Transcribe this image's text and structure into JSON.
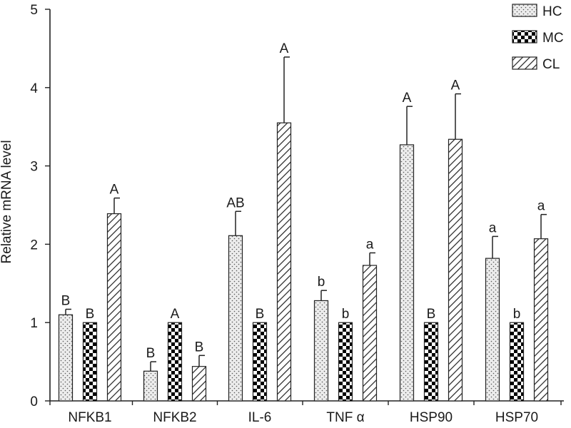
{
  "chart_data": {
    "type": "bar",
    "ylabel": "Relative mRNA level",
    "xlabel": "",
    "ylim": [
      0,
      5
    ],
    "yticks": [
      "0",
      "1",
      "2",
      "3",
      "4",
      "5"
    ],
    "categories": [
      "NFKB1",
      "NFKB2",
      "IL-6",
      "TNF α",
      "HSP90",
      "HSP70"
    ],
    "legend_position": "top-right",
    "series": [
      {
        "name": "HC",
        "pattern": "dots",
        "values": [
          1.1,
          0.38,
          2.11,
          1.28,
          3.27,
          1.82
        ],
        "errors": [
          0.07,
          0.12,
          0.31,
          0.13,
          0.49,
          0.28
        ],
        "significance": [
          "B",
          "B",
          "AB",
          "b",
          "A",
          "a"
        ]
      },
      {
        "name": "MC",
        "pattern": "checker",
        "values": [
          1.0,
          1.0,
          1.0,
          1.0,
          1.0,
          1.0
        ],
        "errors": [
          0,
          0,
          0,
          0,
          0,
          0
        ],
        "significance": [
          "B",
          "A",
          "B",
          "b",
          "B",
          "b"
        ]
      },
      {
        "name": "CL",
        "pattern": "diagonal",
        "values": [
          2.39,
          0.44,
          3.55,
          1.73,
          3.34,
          2.07
        ],
        "errors": [
          0.2,
          0.14,
          0.84,
          0.16,
          0.58,
          0.31
        ],
        "significance": [
          "A",
          "B",
          "A",
          "a",
          "A",
          "a"
        ]
      }
    ]
  }
}
